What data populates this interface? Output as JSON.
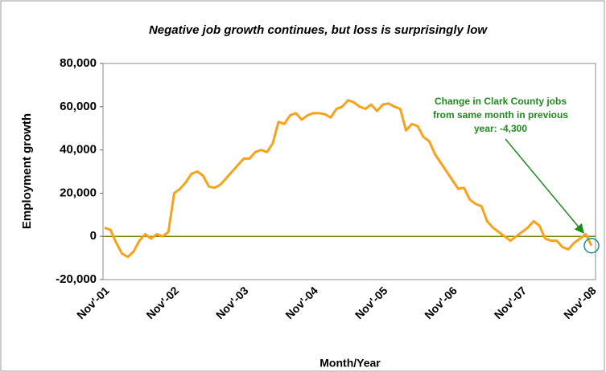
{
  "chart_data": {
    "type": "line",
    "title": "Negative job growth continues, but loss is surprisingly low",
    "ylabel": "Employment growth",
    "xlabel": "Month/Year",
    "annotation": [
      "Change in Clark County jobs",
      "from same month in previous",
      "year: -4,300"
    ],
    "categories": [
      "Nov'-01",
      null,
      null,
      null,
      null,
      null,
      null,
      null,
      null,
      null,
      null,
      null,
      "Nov'-02",
      null,
      null,
      null,
      null,
      null,
      null,
      null,
      null,
      null,
      null,
      null,
      "Nov'-03",
      null,
      null,
      null,
      null,
      null,
      null,
      null,
      null,
      null,
      null,
      null,
      "Nov'-04",
      null,
      null,
      null,
      null,
      null,
      null,
      null,
      null,
      null,
      null,
      null,
      "Nov'-05",
      null,
      null,
      null,
      null,
      null,
      null,
      null,
      null,
      null,
      null,
      null,
      "Nov'-06",
      null,
      null,
      null,
      null,
      null,
      null,
      null,
      null,
      null,
      null,
      null,
      "Nov'-07",
      null,
      null,
      null,
      null,
      null,
      null,
      null,
      null,
      null,
      null,
      null,
      "Nov'-08"
    ],
    "series": [
      {
        "name": "Employment growth",
        "color": "#f7a21b",
        "values": [
          4000,
          3000,
          -3000,
          -8000,
          -9500,
          -7000,
          -2000,
          1000,
          -1000,
          1000,
          0,
          2000,
          20000,
          22000,
          25000,
          29000,
          30000,
          28000,
          23000,
          22500,
          24000,
          27000,
          30000,
          33000,
          36000,
          36000,
          39000,
          40000,
          39000,
          43000,
          53000,
          52000,
          56000,
          57000,
          54000,
          56000,
          57000,
          57000,
          56500,
          55000,
          59000,
          60000,
          63000,
          62000,
          60000,
          59000,
          61000,
          58000,
          61000,
          61500,
          60000,
          59000,
          49000,
          52000,
          51000,
          46000,
          44000,
          38000,
          34000,
          30000,
          26000,
          22000,
          22500,
          17000,
          15000,
          14000,
          7000,
          4000,
          2000,
          0,
          -2000,
          0,
          2000,
          4000,
          7000,
          5000,
          -1000,
          -2000,
          -2000,
          -5000,
          -6000,
          -3000,
          -1000,
          1000,
          -4300
        ]
      }
    ],
    "ylim": [
      -20000,
      80000
    ],
    "yticks": [
      {
        "value": -20000,
        "label": "-20,000"
      },
      0,
      {
        "value": 20000,
        "label": "20,000"
      },
      {
        "value": 40000,
        "label": "40,000"
      },
      {
        "value": 60000,
        "label": "60,000"
      },
      {
        "value": 80000,
        "label": "80,000"
      }
    ],
    "zero_line_color": "#808000",
    "annotation_color": "#1e8a1e",
    "highlight_color": "#1f8f8f"
  }
}
